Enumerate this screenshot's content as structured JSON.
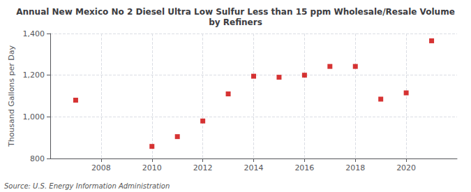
{
  "chart_data": {
    "type": "scatter",
    "title": "Annual New Mexico No 2 Diesel Ultra Low Sulfur Less than 15 ppm Wholesale/Resale Volume\nby Refiners",
    "ylabel": "Thousand Gallons per Day",
    "annotations": [
      "Source: U.S. Energy Information Administration"
    ],
    "x": [
      2007,
      2010,
      2011,
      2012,
      2013,
      2014,
      2015,
      2016,
      2017,
      2018,
      2019,
      2020,
      2021
    ],
    "values": [
      1080,
      858,
      905,
      980,
      1110,
      1195,
      1190,
      1200,
      1242,
      1242,
      1085,
      1115,
      1365
    ],
    "color": "#cc0000",
    "marker": "square",
    "xlim": [
      2006.0,
      2022.0
    ],
    "xticks": [
      2008,
      2010,
      2012,
      2014,
      2016,
      2018,
      2020
    ],
    "ylim": [
      800,
      1400
    ],
    "yticks": [
      800,
      {
        "value": 1000,
        "label": "1,000"
      },
      {
        "value": 1200,
        "label": "1,200"
      },
      {
        "value": 1400,
        "label": "1,400"
      }
    ],
    "grid": true
  }
}
